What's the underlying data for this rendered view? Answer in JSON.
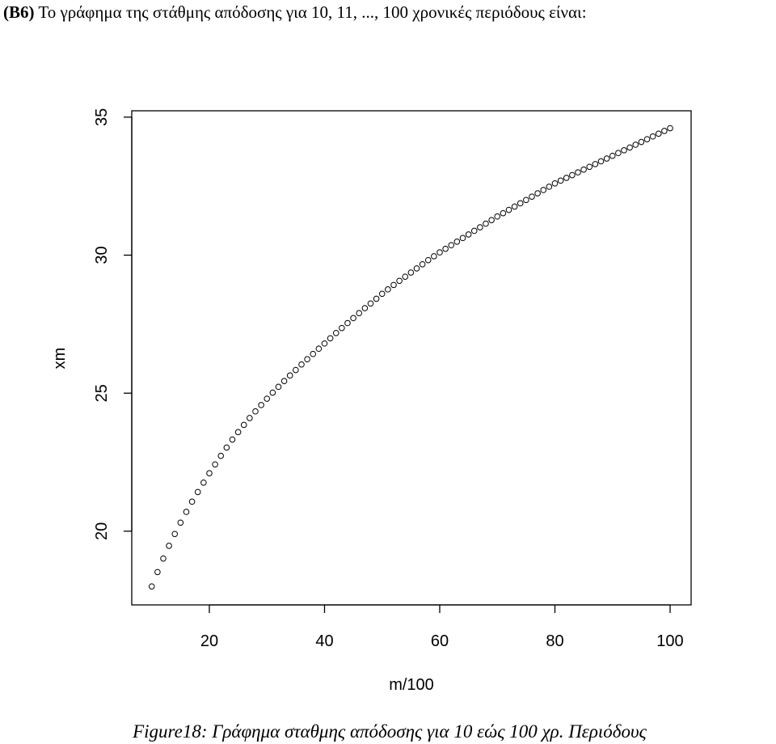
{
  "heading": {
    "label": "(Β6)",
    "text": "Το γράφημα της στάθμης απόδοσης για 10, 11, ..., 100 χρονικές περιόδους είναι:"
  },
  "chart_data": {
    "type": "scatter",
    "xlabel": "m/100",
    "ylabel": "xm",
    "x": [
      10,
      11,
      12,
      13,
      14,
      15,
      16,
      17,
      18,
      19,
      20,
      21,
      22,
      23,
      24,
      25,
      26,
      27,
      28,
      29,
      30,
      31,
      32,
      33,
      34,
      35,
      36,
      37,
      38,
      39,
      40,
      41,
      42,
      43,
      44,
      45,
      46,
      47,
      48,
      49,
      50,
      51,
      52,
      53,
      54,
      55,
      56,
      57,
      58,
      59,
      60,
      61,
      62,
      63,
      64,
      65,
      66,
      67,
      68,
      69,
      70,
      71,
      72,
      73,
      74,
      75,
      76,
      77,
      78,
      79,
      80,
      81,
      82,
      83,
      84,
      85,
      86,
      87,
      88,
      89,
      90,
      91,
      92,
      93,
      94,
      95,
      96,
      97,
      98,
      99,
      100
    ],
    "values": [
      18.0,
      18.52,
      19.01,
      19.47,
      19.9,
      20.31,
      20.7,
      21.07,
      21.42,
      21.76,
      22.1,
      22.42,
      22.73,
      23.03,
      23.32,
      23.59,
      23.85,
      24.1,
      24.34,
      24.57,
      24.8,
      25.02,
      25.23,
      25.44,
      25.64,
      25.84,
      26.04,
      26.23,
      26.42,
      26.61,
      26.8,
      26.99,
      27.18,
      27.36,
      27.54,
      27.72,
      27.9,
      28.08,
      28.25,
      28.42,
      28.6,
      28.76,
      28.92,
      29.07,
      29.22,
      29.37,
      29.52,
      29.67,
      29.82,
      29.96,
      30.1,
      30.23,
      30.36,
      30.49,
      30.62,
      30.75,
      30.88,
      31.01,
      31.14,
      31.27,
      31.4,
      31.52,
      31.64,
      31.76,
      31.88,
      32.0,
      32.12,
      32.24,
      32.36,
      32.48,
      32.6,
      32.7,
      32.8,
      32.9,
      33.0,
      33.1,
      33.2,
      33.3,
      33.4,
      33.5,
      33.6,
      33.7,
      33.8,
      33.9,
      34.0,
      34.1,
      34.2,
      34.3,
      34.4,
      34.5,
      34.6
    ],
    "color": "#000000",
    "xlim": [
      6.53,
      103.65
    ],
    "xticks": [
      20,
      40,
      60,
      80,
      100
    ],
    "ylim": [
      17.33,
      35.23
    ],
    "yticks": [
      20,
      25,
      30,
      35
    ]
  },
  "caption": "Figure18: Γράφημα σταθμης απόδοσης για 10 εώς 100 χρ. Περιόδους"
}
